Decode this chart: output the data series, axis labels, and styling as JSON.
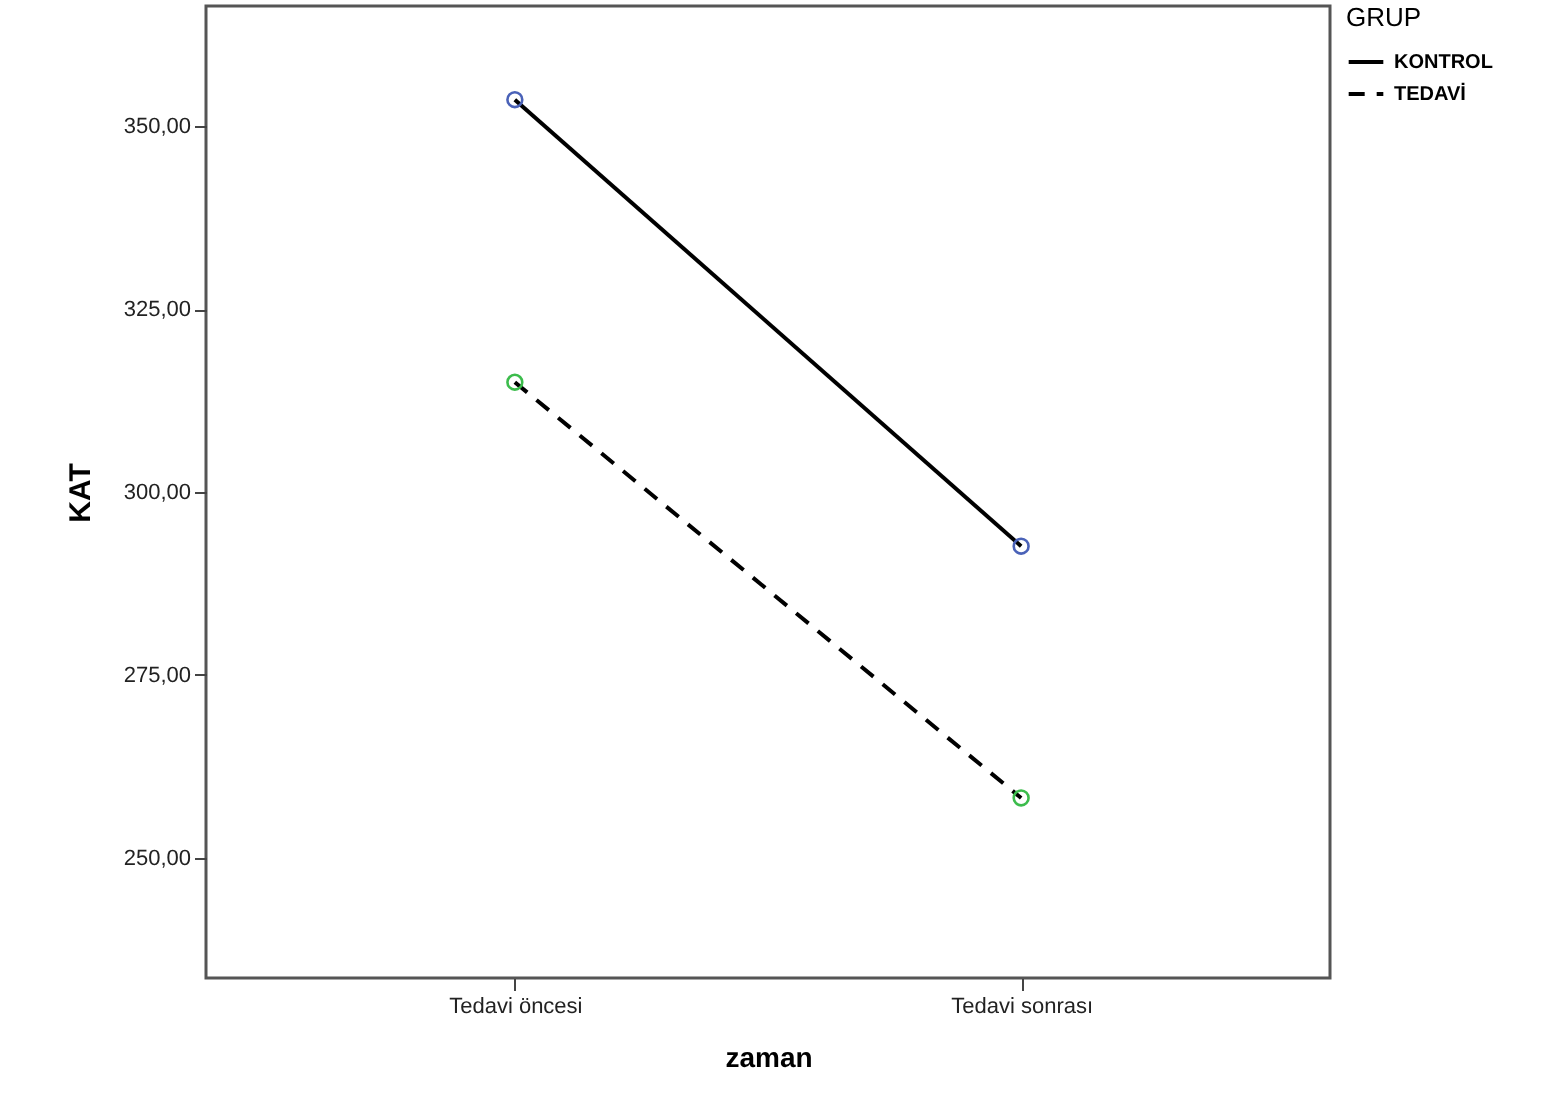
{
  "chart_data": {
    "type": "line",
    "xlabel": "zaman",
    "ylabel": "KAT",
    "legend_title": "GRUP",
    "legend": "right",
    "grid": false,
    "marker": "circle",
    "categories": [
      "Tedavi öncesi",
      "Tedavi sonrası"
    ],
    "ylim": [
      233.6,
      366.4
    ],
    "yticks": [
      {
        "value": 250,
        "label": "250,00"
      },
      {
        "value": 275,
        "label": "275,00"
      },
      {
        "value": 300,
        "label": "300,00"
      },
      {
        "value": 325,
        "label": "325,00"
      },
      {
        "value": 350,
        "label": "350,00"
      }
    ],
    "series": [
      {
        "name": "KONTROL",
        "color": "#000000",
        "colors": [
          "#4a62b8",
          "#4a62b8"
        ],
        "line_style": "solid",
        "values": [
          353.6,
          292.6
        ]
      },
      {
        "name": "TEDAVİ",
        "color": "#000000",
        "colors": [
          "#3cbc4c",
          "#3cbc4c"
        ],
        "line_style": "dashed",
        "values": [
          315.0,
          258.2
        ]
      }
    ]
  }
}
